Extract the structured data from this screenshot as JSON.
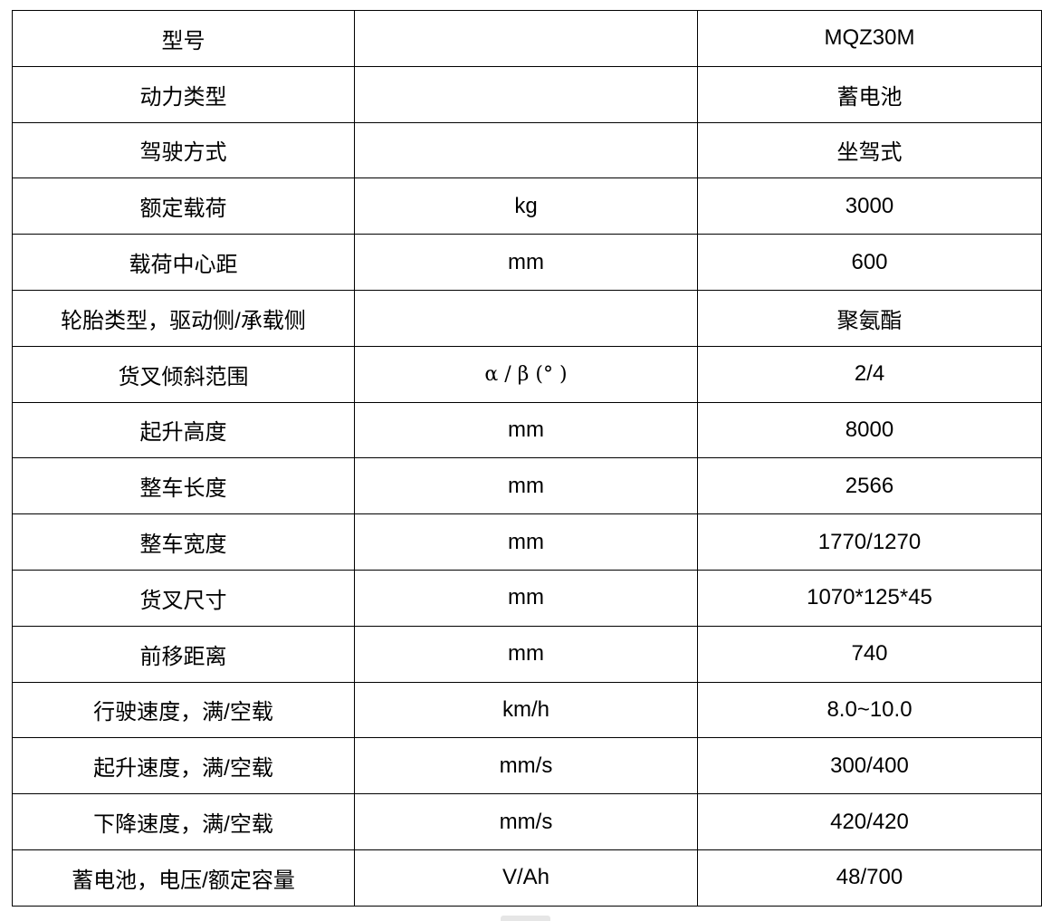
{
  "rows": [
    {
      "param": "型号",
      "unit": "",
      "value": "MQZ30M"
    },
    {
      "param": "动力类型",
      "unit": "",
      "value": "蓄电池"
    },
    {
      "param": "驾驶方式",
      "unit": "",
      "value": "坐驾式"
    },
    {
      "param": "额定载荷",
      "unit": "kg",
      "value": "3000"
    },
    {
      "param": "载荷中心距",
      "unit": "mm",
      "value": "600"
    },
    {
      "param": "轮胎类型，驱动侧/承载侧",
      "unit": "",
      "value": "聚氨酯"
    },
    {
      "param": "货叉倾斜范围",
      "unit": "α / β (°  )",
      "value": "2/4"
    },
    {
      "param": "起升高度",
      "unit": "mm",
      "value": "8000"
    },
    {
      "param": "整车长度",
      "unit": "mm",
      "value": "2566"
    },
    {
      "param": "整车宽度",
      "unit": "mm",
      "value": "1770/1270"
    },
    {
      "param": "货叉尺寸",
      "unit": "mm",
      "value": "1070*125*45"
    },
    {
      "param": "前移距离",
      "unit": "mm",
      "value": "740"
    },
    {
      "param": "行驶速度，满/空载",
      "unit": "km/h",
      "value": "8.0~10.0"
    },
    {
      "param": "起升速度，满/空载",
      "unit": "mm/s",
      "value": "300/400"
    },
    {
      "param": "下降速度，满/空载",
      "unit": "mm/s",
      "value": "420/420"
    },
    {
      "param": "蓄电池，电压/额定容量",
      "unit": "V/Ah",
      "value": "48/700"
    }
  ]
}
